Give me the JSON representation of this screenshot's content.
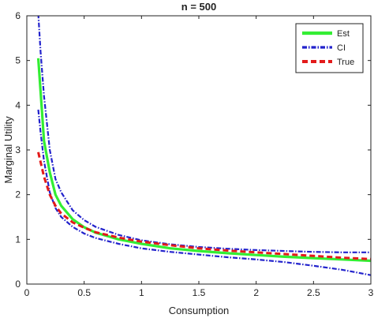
{
  "chart_data": {
    "type": "line",
    "title": "n = 500",
    "xlabel": "Consumption",
    "ylabel": "Marginal Utility",
    "xlim": [
      0,
      3
    ],
    "ylim": [
      0,
      6
    ],
    "xticks": [
      0,
      0.5,
      1,
      1.5,
      2,
      2.5,
      3
    ],
    "xtick_labels": [
      "0",
      "0.5",
      "1",
      "1.5",
      "2",
      "2.5",
      "3"
    ],
    "yticks": [
      0,
      1,
      2,
      3,
      4,
      5,
      6
    ],
    "ytick_labels": [
      "0",
      "1",
      "2",
      "3",
      "4",
      "5",
      "6"
    ],
    "grid": false,
    "legend_position": "top-right",
    "series": [
      {
        "name": "Est",
        "color": "#33ee33",
        "style": "solid",
        "x": [
          0.1,
          0.15,
          0.2,
          0.25,
          0.3,
          0.4,
          0.5,
          0.6,
          0.8,
          1.0,
          1.25,
          1.5,
          1.75,
          2.0,
          2.25,
          2.5,
          2.75,
          3.0
        ],
        "y": [
          5.05,
          3.2,
          2.5,
          2.0,
          1.75,
          1.45,
          1.27,
          1.15,
          1.0,
          0.9,
          0.8,
          0.74,
          0.69,
          0.65,
          0.61,
          0.58,
          0.55,
          0.52
        ]
      },
      {
        "name": "CI",
        "legend_label": "CI",
        "color": "#2222cc",
        "style": "dashdot",
        "x": [
          0.1,
          0.12,
          0.15,
          0.2,
          0.25,
          0.3,
          0.4,
          0.5,
          0.6,
          0.8,
          1.0,
          1.25,
          1.5,
          1.75,
          2.0,
          2.25,
          2.5,
          2.75,
          3.0
        ],
        "y": [
          6.05,
          5.2,
          4.2,
          3.0,
          2.35,
          2.05,
          1.65,
          1.43,
          1.28,
          1.1,
          0.98,
          0.89,
          0.83,
          0.79,
          0.76,
          0.74,
          0.72,
          0.71,
          0.71
        ]
      },
      {
        "name": "CI lower",
        "legend_label": "",
        "color": "#2222cc",
        "style": "dashdot",
        "x": [
          0.1,
          0.12,
          0.15,
          0.2,
          0.25,
          0.3,
          0.4,
          0.5,
          0.6,
          0.8,
          1.0,
          1.25,
          1.5,
          1.75,
          2.0,
          2.25,
          2.5,
          2.75,
          3.0
        ],
        "y": [
          3.9,
          3.4,
          2.75,
          2.05,
          1.7,
          1.5,
          1.28,
          1.13,
          1.03,
          0.9,
          0.8,
          0.72,
          0.66,
          0.6,
          0.55,
          0.49,
          0.41,
          0.32,
          0.2
        ]
      },
      {
        "name": "True",
        "color": "#e31a1a",
        "style": "dashed",
        "x": [
          0.1,
          0.15,
          0.2,
          0.25,
          0.3,
          0.4,
          0.5,
          0.6,
          0.8,
          1.0,
          1.25,
          1.5,
          1.75,
          2.0,
          2.25,
          2.5,
          2.75,
          3.0
        ],
        "y": [
          2.95,
          2.4,
          2.0,
          1.75,
          1.58,
          1.38,
          1.26,
          1.16,
          1.04,
          0.95,
          0.87,
          0.8,
          0.75,
          0.71,
          0.67,
          0.63,
          0.59,
          0.56
        ]
      }
    ]
  }
}
